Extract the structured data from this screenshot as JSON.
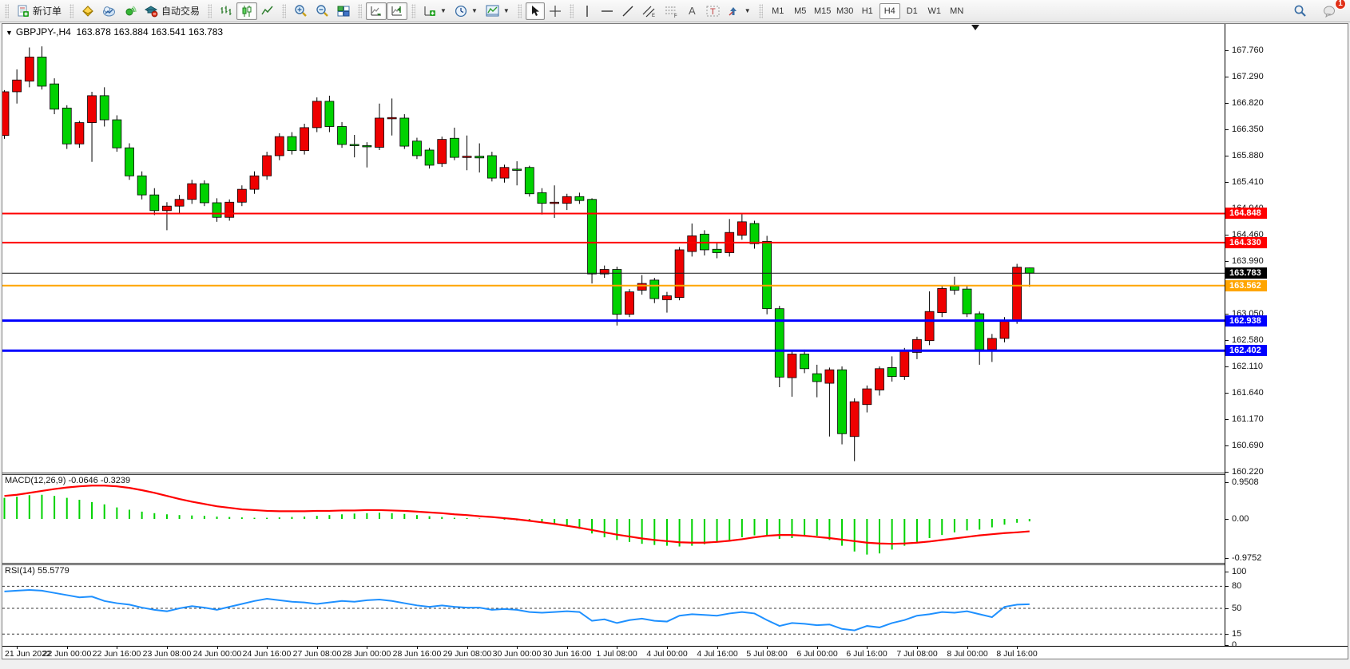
{
  "toolbar": {
    "new_order_label": "新订单",
    "auto_trading_label": "自动交易",
    "timeframes": [
      {
        "label": "M1",
        "active": false
      },
      {
        "label": "M5",
        "active": false
      },
      {
        "label": "M15",
        "active": false
      },
      {
        "label": "M30",
        "active": false
      },
      {
        "label": "H1",
        "active": false
      },
      {
        "label": "H4",
        "active": true
      },
      {
        "label": "D1",
        "active": false
      },
      {
        "label": "W1",
        "active": false
      },
      {
        "label": "MN",
        "active": false
      }
    ],
    "notification_count": "1"
  },
  "chart": {
    "quote": {
      "symbol": "GBPJPY-,H4",
      "open": "163.878",
      "high": "163.884",
      "low": "163.541",
      "close": "163.783"
    },
    "price_axis_ticks": [
      "167.760",
      "167.290",
      "166.820",
      "166.350",
      "165.880",
      "165.410",
      "164.940",
      "164.460",
      "163.990",
      "163.520",
      "163.050",
      "162.580",
      "162.110",
      "161.640",
      "161.170",
      "160.690",
      "160.220"
    ],
    "time_axis_labels": [
      "21 Jun 2022",
      "22 Jun 00:00",
      "22 Jun 16:00",
      "23 Jun 08:00",
      "24 Jun 00:00",
      "24 Jun 16:00",
      "27 Jun 08:00",
      "28 Jun 00:00",
      "28 Jun 16:00",
      "29 Jun 08:00",
      "30 Jun 00:00",
      "30 Jun 16:00",
      "1 Jul 08:00",
      "4 Jul 00:00",
      "4 Jul 16:00",
      "5 Jul 08:00",
      "6 Jul 00:00",
      "6 Jul 16:00",
      "7 Jul 08:00",
      "8 Jul 00:00",
      "8 Jul 16:00"
    ],
    "colors": {
      "bull": "#ee0000",
      "bear": "#00d200",
      "wick": "#000000",
      "macd_hist": "#00d200",
      "macd_signal": "#ff0000",
      "rsi_line": "#1e90ff",
      "line_red": "#ff0000",
      "line_orange": "#ffa500",
      "line_blue": "#0000ff",
      "line_black": "#1a1a1a"
    }
  },
  "chart_data": {
    "type": "candlestick",
    "symbol": "GBPJPY-",
    "period": "H4",
    "price_axis_range": [
      160.22,
      167.76
    ],
    "hlines": [
      {
        "price": 164.848,
        "label": "164.848",
        "color": "#ff0000",
        "width": 2
      },
      {
        "price": 164.33,
        "label": "164.330",
        "color": "#ff0000",
        "width": 2
      },
      {
        "price": 163.783,
        "label": "163.783",
        "color": "#1a1a1a",
        "width": 1,
        "role": "bid-line"
      },
      {
        "price": 163.562,
        "label": "163.562",
        "color": "#ffa500",
        "width": 2
      },
      {
        "price": 162.938,
        "label": "162.938",
        "color": "#0000ff",
        "width": 3
      },
      {
        "price": 162.402,
        "label": "162.402",
        "color": "#0000ff",
        "width": 3
      }
    ],
    "candles": [
      [
        "21 Jun 04:00",
        166.24,
        167.05,
        166.18,
        167.02
      ],
      [
        "21 Jun 08:00",
        167.02,
        167.42,
        166.81,
        167.23
      ],
      [
        "21 Jun 12:00",
        167.21,
        167.81,
        167.1,
        167.64
      ],
      [
        "21 Jun 16:00",
        167.64,
        167.83,
        167.06,
        167.12
      ],
      [
        "21 Jun 20:00",
        167.16,
        167.26,
        166.62,
        166.71
      ],
      [
        "22 Jun 00:00",
        166.73,
        166.78,
        166.0,
        166.09
      ],
      [
        "22 Jun 04:00",
        166.09,
        166.5,
        166.02,
        166.47
      ],
      [
        "22 Jun 08:00",
        166.47,
        167.02,
        165.77,
        166.95
      ],
      [
        "22 Jun 12:00",
        166.95,
        167.1,
        166.4,
        166.52
      ],
      [
        "22 Jun 16:00",
        166.52,
        166.6,
        165.95,
        166.02
      ],
      [
        "22 Jun 20:00",
        166.02,
        166.1,
        165.45,
        165.52
      ],
      [
        "23 Jun 00:00",
        165.52,
        165.6,
        165.1,
        165.18
      ],
      [
        "23 Jun 04:00",
        165.18,
        165.3,
        164.82,
        164.9
      ],
      [
        "23 Jun 08:00",
        164.9,
        165.05,
        164.55,
        164.98
      ],
      [
        "23 Jun 12:00",
        164.98,
        165.18,
        164.85,
        165.1
      ],
      [
        "23 Jun 16:00",
        165.1,
        165.45,
        165.02,
        165.38
      ],
      [
        "23 Jun 20:00",
        165.38,
        165.44,
        164.98,
        165.04
      ],
      [
        "24 Jun 00:00",
        165.04,
        165.12,
        164.7,
        164.78
      ],
      [
        "24 Jun 04:00",
        164.78,
        165.1,
        164.72,
        165.05
      ],
      [
        "24 Jun 08:00",
        165.05,
        165.35,
        164.98,
        165.28
      ],
      [
        "24 Jun 12:00",
        165.28,
        165.6,
        165.2,
        165.52
      ],
      [
        "24 Jun 16:00",
        165.52,
        165.95,
        165.45,
        165.88
      ],
      [
        "24 Jun 20:00",
        165.88,
        166.28,
        165.8,
        166.22
      ],
      [
        "27 Jun 00:00",
        166.22,
        166.3,
        165.9,
        165.97
      ],
      [
        "27 Jun 04:00",
        165.97,
        166.45,
        165.9,
        166.38
      ],
      [
        "27 Jun 08:00",
        166.38,
        166.92,
        166.3,
        166.85
      ],
      [
        "27 Jun 12:00",
        166.85,
        166.95,
        166.3,
        166.4
      ],
      [
        "27 Jun 16:00",
        166.4,
        166.48,
        166.02,
        166.08
      ],
      [
        "27 Jun 20:00",
        166.08,
        166.25,
        165.85,
        166.06
      ],
      [
        "28 Jun 00:00",
        166.06,
        166.12,
        165.67,
        166.04
      ],
      [
        "28 Jun 04:00",
        166.03,
        166.81,
        165.98,
        166.55
      ],
      [
        "28 Jun 08:00",
        166.55,
        166.9,
        166.24,
        166.56
      ],
      [
        "28 Jun 12:00",
        166.55,
        166.62,
        166.0,
        166.05
      ],
      [
        "28 Jun 16:00",
        166.14,
        166.2,
        165.82,
        165.88
      ],
      [
        "28 Jun 20:00",
        165.98,
        166.02,
        165.65,
        165.71
      ],
      [
        "29 Jun 00:00",
        165.74,
        166.22,
        165.68,
        166.17
      ],
      [
        "29 Jun 04:00",
        166.19,
        166.38,
        165.8,
        165.85
      ],
      [
        "29 Jun 08:00",
        165.85,
        166.24,
        165.62,
        165.87
      ],
      [
        "29 Jun 12:00",
        165.87,
        166.1,
        165.58,
        165.84
      ],
      [
        "29 Jun 16:00",
        165.88,
        165.95,
        165.42,
        165.48
      ],
      [
        "29 Jun 20:00",
        165.48,
        165.72,
        165.4,
        165.67
      ],
      [
        "30 Jun 00:00",
        165.64,
        165.78,
        165.35,
        165.62
      ],
      [
        "30 Jun 04:00",
        165.67,
        165.7,
        165.15,
        165.2
      ],
      [
        "30 Jun 08:00",
        165.22,
        165.3,
        164.83,
        165.03
      ],
      [
        "30 Jun 12:00",
        165.03,
        165.35,
        164.77,
        165.05
      ],
      [
        "30 Jun 16:00",
        165.03,
        165.2,
        164.91,
        165.15
      ],
      [
        "30 Jun 20:00",
        165.15,
        165.22,
        165.02,
        165.08
      ],
      [
        "1 Jul 00:00",
        165.1,
        165.12,
        163.6,
        163.77
      ],
      [
        "1 Jul 04:00",
        163.77,
        163.92,
        163.7,
        163.85
      ],
      [
        "1 Jul 08:00",
        163.85,
        163.9,
        162.85,
        163.05
      ],
      [
        "1 Jul 12:00",
        163.05,
        163.5,
        163.0,
        163.45
      ],
      [
        "1 Jul 16:00",
        163.48,
        163.75,
        163.4,
        163.6
      ],
      [
        "1 Jul 20:00",
        163.66,
        163.7,
        163.25,
        163.33
      ],
      [
        "4 Jul 00:00",
        163.31,
        163.45,
        163.08,
        163.38
      ],
      [
        "4 Jul 04:00",
        163.35,
        164.25,
        163.3,
        164.2
      ],
      [
        "4 Jul 08:00",
        164.17,
        164.67,
        164.08,
        164.45
      ],
      [
        "4 Jul 12:00",
        164.48,
        164.55,
        164.1,
        164.2
      ],
      [
        "4 Jul 16:00",
        164.21,
        164.32,
        164.05,
        164.15
      ],
      [
        "4 Jul 20:00",
        164.15,
        164.75,
        164.08,
        164.51
      ],
      [
        "5 Jul 00:00",
        164.46,
        164.85,
        164.38,
        164.7
      ],
      [
        "5 Jul 04:00",
        164.67,
        164.72,
        164.22,
        164.31
      ],
      [
        "5 Jul 08:00",
        164.35,
        164.45,
        163.05,
        163.15
      ],
      [
        "5 Jul 12:00",
        163.15,
        163.2,
        161.75,
        161.93
      ],
      [
        "5 Jul 16:00",
        161.92,
        162.4,
        161.58,
        162.34
      ],
      [
        "5 Jul 20:00",
        162.34,
        162.42,
        162.0,
        162.08
      ],
      [
        "6 Jul 00:00",
        161.99,
        162.15,
        161.57,
        161.85
      ],
      [
        "6 Jul 04:00",
        161.82,
        162.1,
        160.87,
        162.06
      ],
      [
        "6 Jul 08:00",
        162.06,
        162.12,
        160.73,
        160.92
      ],
      [
        "6 Jul 12:00",
        160.87,
        161.55,
        160.43,
        161.49
      ],
      [
        "6 Jul 16:00",
        161.44,
        161.78,
        161.3,
        161.72
      ],
      [
        "6 Jul 20:00",
        161.7,
        162.12,
        161.6,
        162.08
      ],
      [
        "7 Jul 00:00",
        162.1,
        162.3,
        161.85,
        161.94
      ],
      [
        "7 Jul 04:00",
        161.94,
        162.45,
        161.88,
        162.39
      ],
      [
        "7 Jul 08:00",
        162.37,
        162.65,
        162.25,
        162.6
      ],
      [
        "7 Jul 12:00",
        162.58,
        163.46,
        162.5,
        163.1
      ],
      [
        "7 Jul 16:00",
        163.08,
        163.55,
        163.0,
        163.51
      ],
      [
        "7 Jul 20:00",
        163.55,
        163.72,
        163.4,
        163.48
      ],
      [
        "8 Jul 00:00",
        163.5,
        163.56,
        163.0,
        163.06
      ],
      [
        "8 Jul 04:00",
        163.06,
        163.1,
        162.15,
        162.42
      ],
      [
        "8 Jul 08:00",
        162.42,
        162.7,
        162.2,
        162.62
      ],
      [
        "8 Jul 12:00",
        162.62,
        163.0,
        162.55,
        162.93
      ],
      [
        "8 Jul 16:00",
        162.93,
        163.95,
        162.88,
        163.89
      ],
      [
        "8 Jul 20:00",
        163.878,
        163.884,
        163.541,
        163.783
      ]
    ],
    "macd": {
      "label": "MACD(12,26,9)",
      "values_text": "-0.0646 -0.3239",
      "scale_labels": [
        "0.9508",
        "0.00",
        "-0.9752"
      ],
      "scale_range": [
        -0.9752,
        0.9508
      ],
      "hist": [
        0.55,
        0.58,
        0.62,
        0.63,
        0.6,
        0.55,
        0.5,
        0.44,
        0.38,
        0.3,
        0.24,
        0.19,
        0.15,
        0.12,
        0.1,
        0.09,
        0.08,
        0.06,
        0.05,
        0.04,
        0.03,
        0.03,
        0.04,
        0.05,
        0.06,
        0.08,
        0.1,
        0.12,
        0.14,
        0.15,
        0.16,
        0.15,
        0.13,
        0.1,
        0.07,
        0.05,
        0.03,
        0.02,
        0.01,
        0.0,
        -0.02,
        -0.04,
        -0.06,
        -0.1,
        -0.15,
        -0.2,
        -0.26,
        -0.38,
        -0.48,
        -0.55,
        -0.6,
        -0.65,
        -0.68,
        -0.7,
        -0.72,
        -0.7,
        -0.66,
        -0.6,
        -0.55,
        -0.48,
        -0.43,
        -0.45,
        -0.52,
        -0.5,
        -0.46,
        -0.44,
        -0.55,
        -0.7,
        -0.85,
        -0.93,
        -0.9,
        -0.8,
        -0.7,
        -0.6,
        -0.5,
        -0.42,
        -0.35,
        -0.3,
        -0.28,
        -0.22,
        -0.15,
        -0.1,
        -0.0646
      ],
      "signal": [
        0.6,
        0.63,
        0.68,
        0.73,
        0.78,
        0.82,
        0.85,
        0.87,
        0.87,
        0.85,
        0.81,
        0.75,
        0.68,
        0.6,
        0.52,
        0.45,
        0.39,
        0.33,
        0.29,
        0.25,
        0.23,
        0.21,
        0.2,
        0.2,
        0.2,
        0.21,
        0.21,
        0.22,
        0.22,
        0.23,
        0.23,
        0.22,
        0.21,
        0.19,
        0.17,
        0.15,
        0.12,
        0.1,
        0.07,
        0.05,
        0.02,
        -0.01,
        -0.05,
        -0.09,
        -0.13,
        -0.18,
        -0.23,
        -0.29,
        -0.35,
        -0.41,
        -0.46,
        -0.51,
        -0.55,
        -0.58,
        -0.61,
        -0.62,
        -0.62,
        -0.6,
        -0.57,
        -0.53,
        -0.48,
        -0.44,
        -0.42,
        -0.42,
        -0.44,
        -0.47,
        -0.5,
        -0.54,
        -0.58,
        -0.62,
        -0.64,
        -0.65,
        -0.64,
        -0.62,
        -0.59,
        -0.55,
        -0.51,
        -0.47,
        -0.43,
        -0.4,
        -0.37,
        -0.35,
        -0.3239
      ]
    },
    "rsi": {
      "label": "RSI(14)",
      "value_text": "55.5779",
      "scale_labels": [
        "100",
        "80",
        "50",
        "15",
        "0"
      ],
      "levels": [
        80,
        50,
        15
      ],
      "values": [
        73,
        74,
        75,
        74,
        71,
        68,
        65,
        66,
        60,
        57,
        55,
        51,
        48,
        46,
        50,
        53,
        51,
        48,
        52,
        56,
        60,
        63,
        61,
        59,
        58,
        56,
        58,
        60,
        59,
        61,
        62,
        60,
        57,
        54,
        52,
        54,
        52,
        51,
        51,
        48,
        49,
        48,
        45,
        44,
        45,
        46,
        45,
        33,
        35,
        30,
        34,
        36,
        33,
        32,
        40,
        42,
        41,
        40,
        43,
        45,
        43,
        34,
        26,
        30,
        29,
        27,
        28,
        22,
        20,
        26,
        24,
        30,
        34,
        40,
        42,
        45,
        44,
        46,
        42,
        38,
        52,
        55,
        55.58
      ]
    }
  }
}
